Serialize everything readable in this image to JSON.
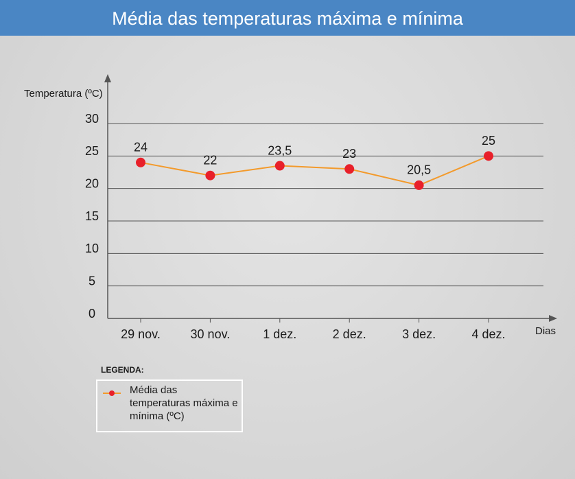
{
  "chart_data": {
    "type": "line",
    "title": "Média das temperaturas máxima e mínima",
    "y_label": "Temperatura (ºC)",
    "x_label": "Dias",
    "legend_title": "LEGENDA:",
    "categories": [
      "29 nov.",
      "30 nov.",
      "1 dez.",
      "2 dez.",
      "3 dez.",
      "4 dez."
    ],
    "series": [
      {
        "name": "Média das temperaturas máxima e mínima (ºC)",
        "color": "#f39a2b",
        "marker_color": "#e8202a",
        "values": [
          24,
          22,
          23.5,
          23,
          20.5,
          25
        ],
        "value_labels": [
          "24",
          "22",
          "23,5",
          "23",
          "20,5",
          "25"
        ]
      }
    ],
    "ylim": [
      0,
      30
    ],
    "yticks": [
      0,
      5,
      10,
      15,
      20,
      25,
      30
    ],
    "grid": true
  }
}
